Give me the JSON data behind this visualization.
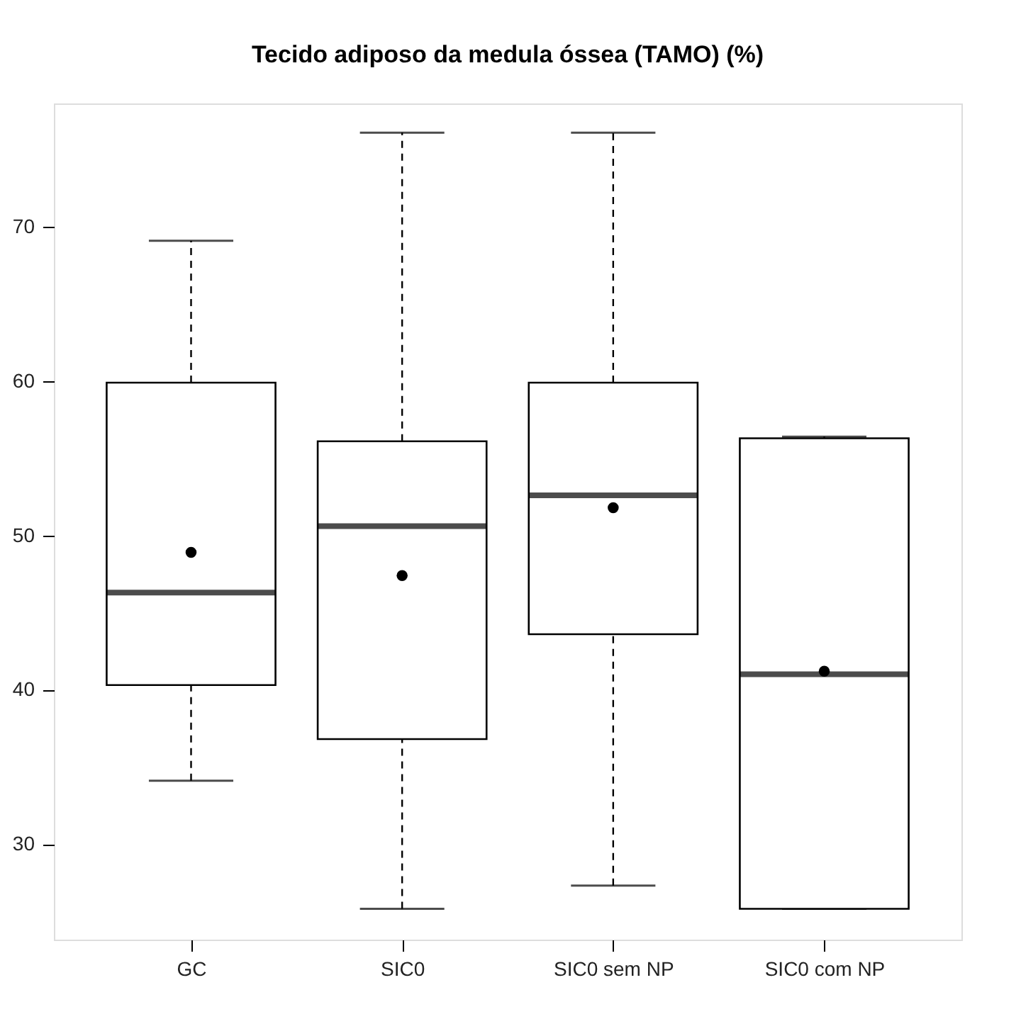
{
  "chart_data": {
    "type": "box",
    "title": "Tecido adiposo da medula óssea (TAMO) (%)",
    "categories": [
      "GC",
      "SIC0",
      "SIC0 sem NP",
      "SIC0 com NP"
    ],
    "boxes": [
      {
        "low": 34.1,
        "q1": 40.3,
        "median": 46.3,
        "q3": 59.9,
        "high": 69.1,
        "mean": 48.9
      },
      {
        "low": 25.8,
        "q1": 36.8,
        "median": 50.6,
        "q3": 56.1,
        "high": 76.1,
        "mean": 47.4
      },
      {
        "low": 27.3,
        "q1": 43.6,
        "median": 52.6,
        "q3": 59.9,
        "high": 76.1,
        "mean": 51.8
      },
      {
        "low": 25.8,
        "q1": 25.8,
        "median": 41.0,
        "q3": 56.3,
        "high": 56.4,
        "mean": 41.2
      }
    ],
    "ylim": [
      23.8,
      78
    ],
    "yticks": [
      30,
      40,
      50,
      60,
      70
    ],
    "grid": false,
    "marker": "circle",
    "color": "#000000"
  }
}
